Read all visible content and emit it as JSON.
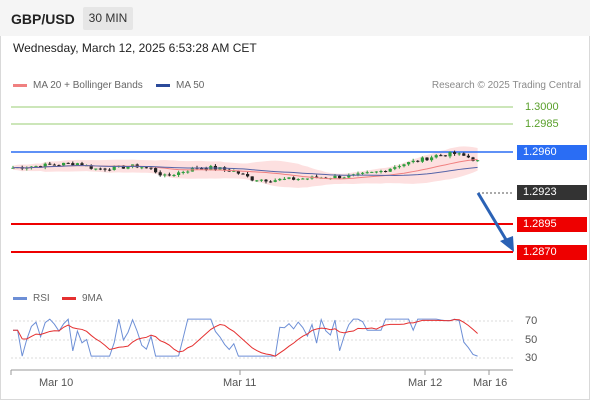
{
  "header": {
    "symbol": "GBP/USD",
    "timeframe": "30 MIN",
    "datetime": "Wednesday, March 12, 2025 6:53:28 AM CET"
  },
  "legend": {
    "ma20": "MA 20 + Bollinger Bands",
    "ma50": "MA 50",
    "rsi": "RSI",
    "ma9": "9MA"
  },
  "copyright": "Research © 2025 Trading Central",
  "price_levels": [
    {
      "value": "1.3000",
      "style": "green-line",
      "color": "#7cba4a"
    },
    {
      "value": "1.2985",
      "style": "green-line",
      "color": "#7cba4a"
    },
    {
      "value": "1.2960",
      "style": "blue-box",
      "color": "#2a6df4"
    },
    {
      "value": "1.2923",
      "style": "current-price",
      "color": "#333333"
    },
    {
      "value": "1.2895",
      "style": "red-box",
      "color": "#ee0000"
    },
    {
      "value": "1.2870",
      "style": "red-box",
      "color": "#ee0000"
    }
  ],
  "rsi_axis": [
    "70",
    "50",
    "30"
  ],
  "time_axis": [
    "Mar 10",
    "Mar 11",
    "Mar 12",
    "Mar 16"
  ],
  "colors": {
    "up_candle": "#2e9e3e",
    "down_candle": "#222222",
    "ma20": "#f08080",
    "ma50": "#5564a8",
    "bollinger_fill": "#fde0e0",
    "rsi": "#6d8fd6",
    "ma9": "#e53030"
  }
}
